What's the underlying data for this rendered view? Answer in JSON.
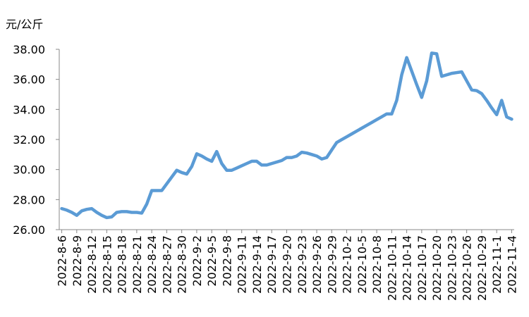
{
  "chart_data": {
    "type": "line",
    "ylabel": "元/公斤",
    "categories": [
      "2022-8-6",
      null,
      null,
      "2022-8-9",
      null,
      null,
      "2022-8-12",
      null,
      null,
      "2022-8-15",
      null,
      null,
      "2022-8-18",
      null,
      null,
      "2022-8-21",
      null,
      null,
      "2022-8-24",
      null,
      null,
      "2022-8-27",
      null,
      null,
      "2022-8-30",
      null,
      null,
      "2022-9-2",
      null,
      null,
      "2022-9-5",
      null,
      null,
      "2022-9-8",
      null,
      null,
      "2022-9-11",
      null,
      null,
      "2022-9-14",
      null,
      null,
      "2022-9-17",
      null,
      null,
      "2022-9-20",
      null,
      null,
      "2022-9-23",
      null,
      null,
      "2022-9-26",
      null,
      null,
      "2022-9-29",
      null,
      null,
      "2022-10-2",
      null,
      null,
      "2022-10-5",
      null,
      null,
      "2022-10-8",
      null,
      null,
      "2022-10-11",
      null,
      null,
      "2022-10-14",
      null,
      null,
      "2022-10-17",
      null,
      null,
      "2022-10-20",
      null,
      null,
      "2022-10-23",
      null,
      null,
      "2022-10-26",
      null,
      null,
      "2022-10-29",
      null,
      null,
      "2022-11-1",
      null,
      null,
      "2022-11-4"
    ],
    "values": [
      27.4,
      27.3,
      27.15,
      26.95,
      27.25,
      27.35,
      27.4,
      27.15,
      26.95,
      26.8,
      26.85,
      27.15,
      27.2,
      27.2,
      27.15,
      27.15,
      27.1,
      27.7,
      28.6,
      28.6,
      28.6,
      29.05,
      29.5,
      29.95,
      29.8,
      29.7,
      30.2,
      31.05,
      30.9,
      30.7,
      30.55,
      31.2,
      30.4,
      29.95,
      29.95,
      30.1,
      30.25,
      30.4,
      30.55,
      30.55,
      30.3,
      30.3,
      30.4,
      30.5,
      30.6,
      30.8,
      30.8,
      30.9,
      31.15,
      31.1,
      31.0,
      30.9,
      30.7,
      30.8,
      31.3,
      31.8,
      31.99,
      32.18,
      32.37,
      32.56,
      32.75,
      32.94,
      33.13,
      33.32,
      33.51,
      33.7,
      33.7,
      34.6,
      36.3,
      37.45,
      36.55,
      35.65,
      34.8,
      35.9,
      37.75,
      37.7,
      36.2,
      36.3,
      36.4,
      36.45,
      36.5,
      35.9,
      35.3,
      35.25,
      35.05,
      34.6,
      34.1,
      33.65,
      34.6,
      33.5,
      33.35
    ],
    "color": "#5b9bd5",
    "ylim": [
      26,
      38
    ],
    "yticks": [
      {
        "value": 26,
        "label": "26.00"
      },
      {
        "value": 28,
        "label": "28.00"
      },
      {
        "value": 30,
        "label": "30.00"
      },
      {
        "value": 32,
        "label": "32.00"
      },
      {
        "value": 34,
        "label": "34.00"
      },
      {
        "value": 36,
        "label": "36.00"
      },
      {
        "value": 38,
        "label": "38.00"
      }
    ]
  }
}
